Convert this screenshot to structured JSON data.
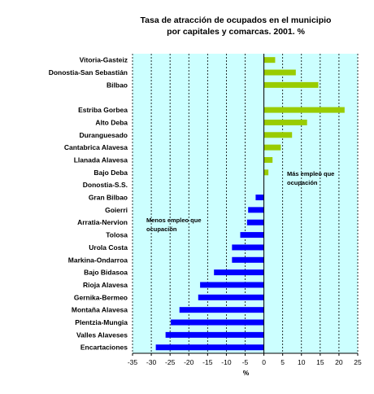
{
  "chart_data": {
    "type": "bar",
    "orientation": "horizontal",
    "title": "Tasa de atracción de ocupados en el municipio por capitales y comarcas. 2001. %",
    "title_lines": [
      "Tasa de atracción de ocupados en el municipio",
      "por capitales y comarcas. 2001. %"
    ],
    "xlabel": "%",
    "xlim": [
      -35,
      25
    ],
    "xticks": [
      -35,
      -30,
      -25,
      -20,
      -15,
      -10,
      -5,
      0,
      5,
      10,
      15,
      20,
      25
    ],
    "grid": true,
    "positive_color": "#99cc00",
    "negative_color": "#0000ff",
    "plot_background": "#ccffff",
    "categories": [
      "Vitoria-Gasteiz",
      "Donostia-San Sebastián",
      "Bilbao",
      "",
      "Estriba Gorbea",
      "Alto Deba",
      "Duranguesado",
      "Cantabrica Alavesa",
      "Llanada Alavesa",
      "Bajo Deba",
      "Donostia-S.S.",
      "Gran Bilbao",
      "Goierri",
      "Arratia-Nervion",
      "Tolosa",
      "Urola Costa",
      "Markina-Ondarroa",
      "Bajo Bidasoa",
      "Rioja Alavesa",
      "Gernika-Bermeo",
      "Montaña Alavesa",
      "Plentzia-Mungia",
      "Valles Alaveses",
      "Encartaciones"
    ],
    "values": [
      3,
      8.5,
      14.5,
      null,
      21.5,
      11.5,
      7.5,
      4.5,
      2.3,
      1.2,
      0,
      -2.2,
      -4.2,
      -4.5,
      -6.3,
      -8.5,
      -8.5,
      -13.3,
      -17,
      -17.5,
      -22.5,
      -24.8,
      -26.2,
      -28.8
    ],
    "annotations": [
      {
        "lines": [
          "Más empleo que",
          "ocupación"
        ]
      },
      {
        "lines": [
          "Menos empleo que",
          "ocupación"
        ]
      }
    ]
  }
}
